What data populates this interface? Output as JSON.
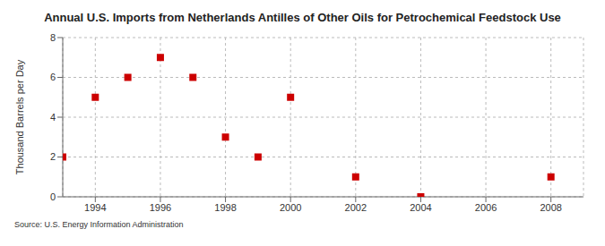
{
  "chart_data": {
    "type": "scatter",
    "title": "Annual U.S. Imports from Netherlands Antilles of Other Oils for Petrochemical Feedstock Use",
    "y_label": "Thousand Barrels per Day",
    "source": "Source: U.S. Energy Information Administration",
    "x": [
      1993,
      1994,
      1995,
      1996,
      1997,
      1998,
      1999,
      2000,
      2002,
      2004,
      2008
    ],
    "values": [
      2,
      5,
      6,
      7,
      6,
      3,
      2,
      5,
      1,
      0,
      1
    ],
    "color": "#cc0000",
    "marker": "square",
    "xlim": [
      1993,
      2009
    ],
    "xticks": [
      1994,
      1996,
      1998,
      2000,
      2002,
      2004,
      2006,
      2008
    ],
    "ylim": [
      0,
      8
    ],
    "yticks": [
      0,
      2,
      4,
      6,
      8
    ],
    "grid": true
  }
}
